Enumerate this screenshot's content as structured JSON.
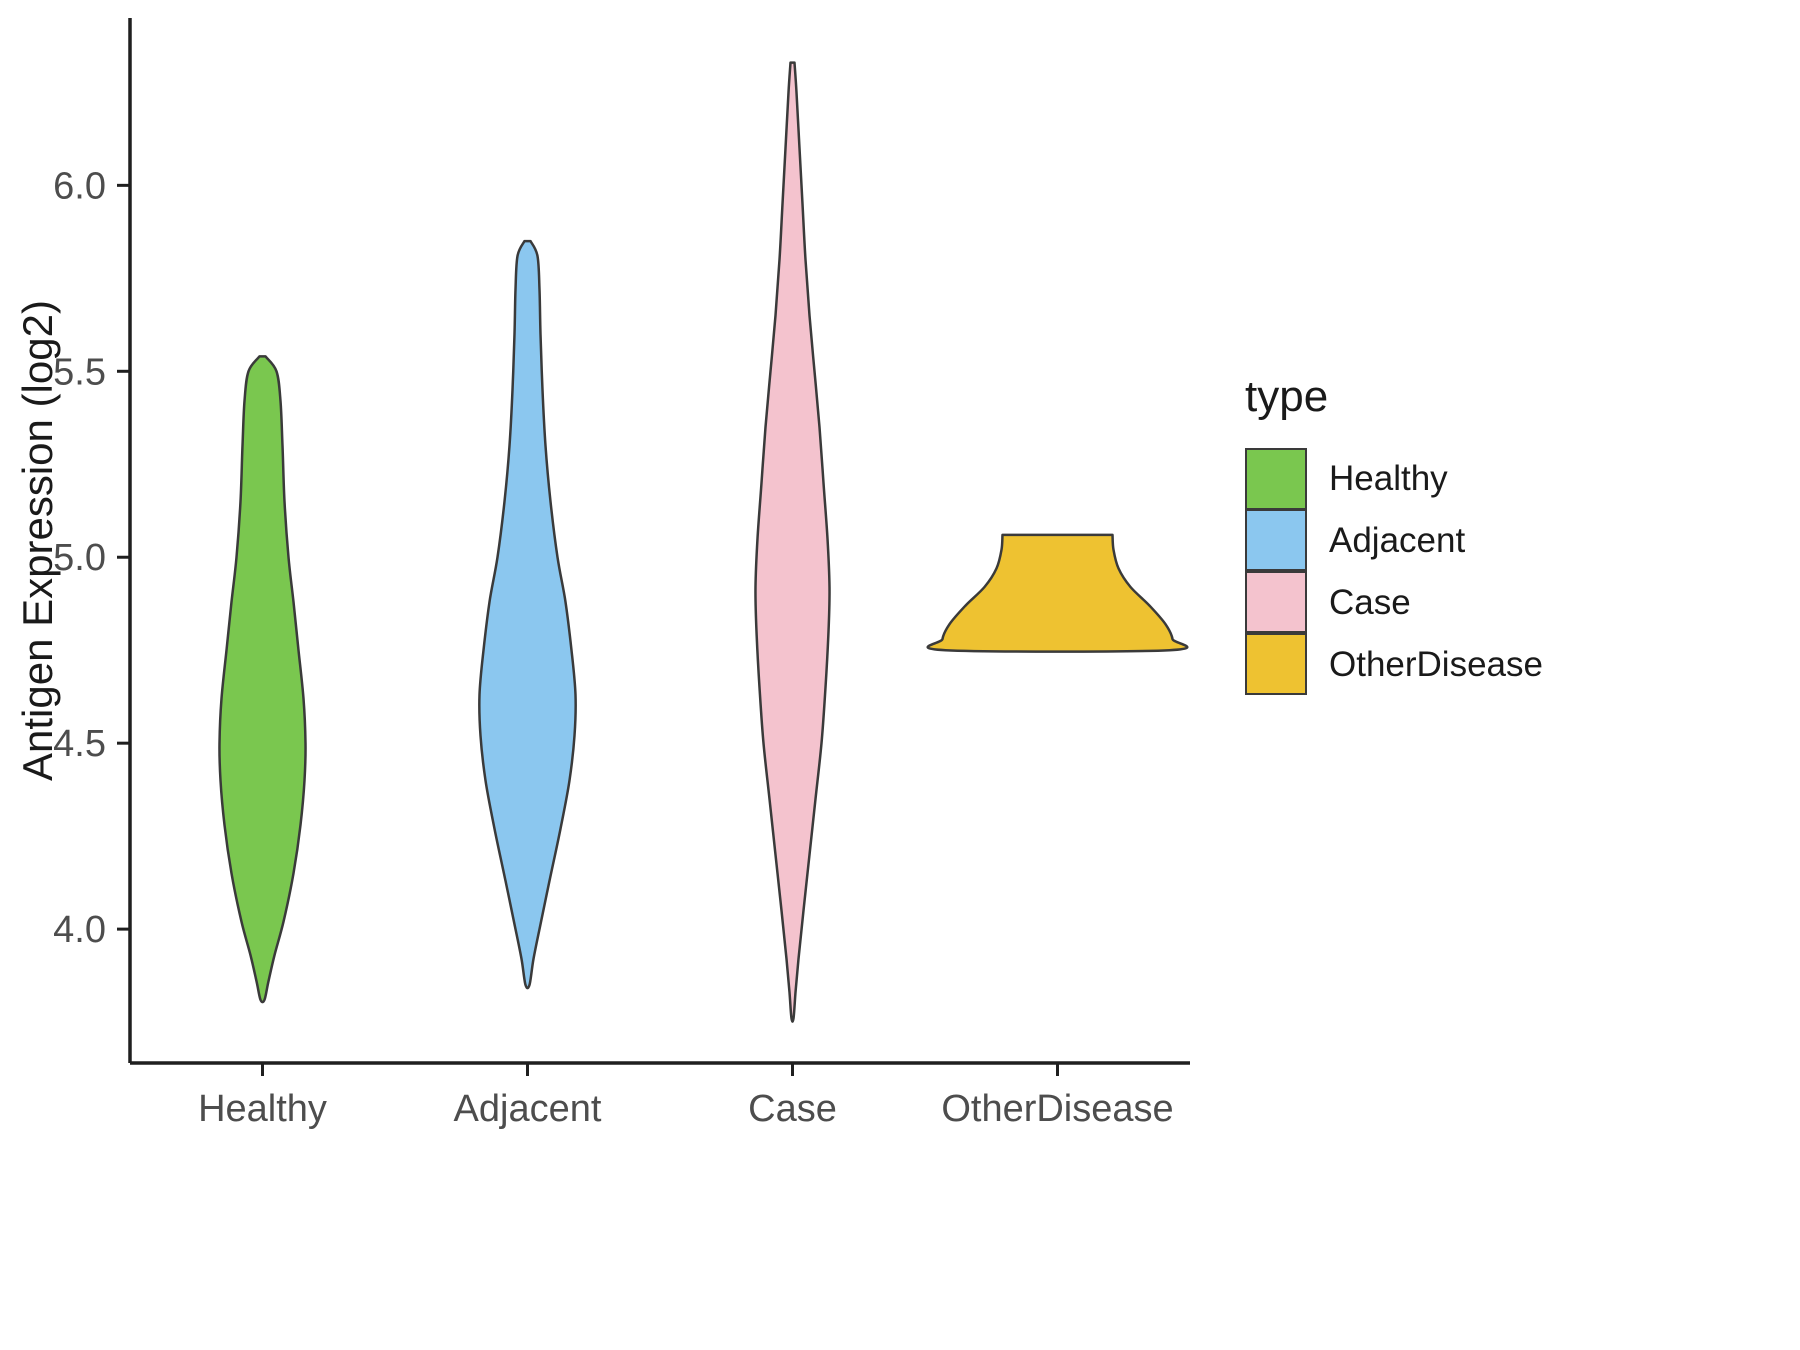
{
  "chart_data": {
    "type": "violin",
    "title": "",
    "xlabel": "",
    "ylabel": "Antigen Expression (log2)",
    "legend_title": "type",
    "categories": [
      "Healthy",
      "Adjacent",
      "Case",
      "OtherDisease"
    ],
    "y_ticks": [
      4.0,
      4.5,
      5.0,
      5.5,
      6.0
    ],
    "ylim": [
      3.64,
      6.45
    ],
    "grid": false,
    "legend_position": "right",
    "outline_color": "#3A3A3A",
    "axis_color": "#1f1f1f",
    "tick_label_color": "#4D4D4D",
    "series": [
      {
        "name": "Healthy",
        "color": "#7AC74F",
        "value_range": [
          3.81,
          5.54
        ],
        "profile": [
          [
            5.54,
            3
          ],
          [
            5.5,
            14
          ],
          [
            5.42,
            18
          ],
          [
            5.3,
            20
          ],
          [
            5.15,
            22
          ],
          [
            5.0,
            26
          ],
          [
            4.88,
            31
          ],
          [
            4.75,
            36
          ],
          [
            4.62,
            41
          ],
          [
            4.5,
            43
          ],
          [
            4.4,
            42
          ],
          [
            4.28,
            38
          ],
          [
            4.15,
            31
          ],
          [
            4.02,
            21
          ],
          [
            3.93,
            12
          ],
          [
            3.86,
            6
          ],
          [
            3.81,
            2
          ]
        ]
      },
      {
        "name": "Adjacent",
        "color": "#8BC7EF",
        "value_range": [
          3.85,
          5.85
        ],
        "profile": [
          [
            5.85,
            3
          ],
          [
            5.81,
            10
          ],
          [
            5.72,
            12
          ],
          [
            5.6,
            13
          ],
          [
            5.45,
            15
          ],
          [
            5.3,
            18
          ],
          [
            5.15,
            23
          ],
          [
            5.0,
            30
          ],
          [
            4.88,
            38
          ],
          [
            4.75,
            44
          ],
          [
            4.63,
            48
          ],
          [
            4.52,
            47
          ],
          [
            4.4,
            42
          ],
          [
            4.27,
            33
          ],
          [
            4.13,
            22
          ],
          [
            4.0,
            12
          ],
          [
            3.92,
            6
          ],
          [
            3.85,
            2
          ]
        ]
      },
      {
        "name": "Case",
        "color": "#F4C3CE",
        "value_range": [
          3.76,
          6.33
        ],
        "profile": [
          [
            6.33,
            2
          ],
          [
            6.25,
            4
          ],
          [
            6.1,
            7
          ],
          [
            5.95,
            10
          ],
          [
            5.8,
            13
          ],
          [
            5.65,
            17
          ],
          [
            5.5,
            22
          ],
          [
            5.35,
            27
          ],
          [
            5.2,
            31
          ],
          [
            5.05,
            35
          ],
          [
            4.92,
            37
          ],
          [
            4.8,
            36
          ],
          [
            4.65,
            33
          ],
          [
            4.5,
            29
          ],
          [
            4.35,
            23
          ],
          [
            4.2,
            17
          ],
          [
            4.05,
            11
          ],
          [
            3.92,
            6
          ],
          [
            3.83,
            3
          ],
          [
            3.76,
            1
          ]
        ]
      },
      {
        "name": "OtherDisease",
        "color": "#EEC231",
        "value_range": [
          4.75,
          5.06
        ],
        "profile": [
          [
            5.06,
            55
          ],
          [
            5.02,
            56
          ],
          [
            4.97,
            61
          ],
          [
            4.92,
            73
          ],
          [
            4.87,
            92
          ],
          [
            4.82,
            108
          ],
          [
            4.78,
            115
          ],
          [
            4.75,
            112
          ]
        ]
      }
    ]
  }
}
